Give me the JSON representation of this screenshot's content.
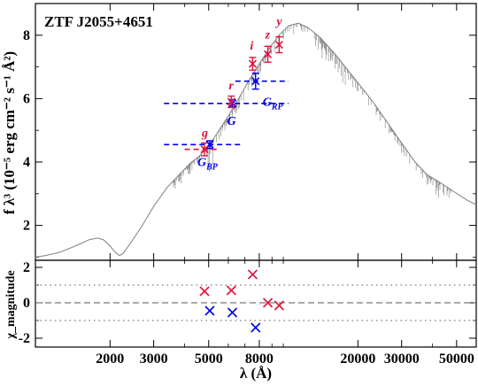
{
  "chart_data": {
    "type": "scatter",
    "title": "ZTF J2055+4651",
    "xlabel": "λ (Å)",
    "ylabel_top": "f λ³ (10⁻⁵ erg cm⁻² s⁻¹ Å²)",
    "ylabel_bottom": "χ_magnitude",
    "x_scale": "log",
    "xlim": [
      1000,
      60000
    ],
    "ylim_top": [
      0.9,
      9.0
    ],
    "ylim_bottom": [
      -2.5,
      2.4
    ],
    "x_ticks": [
      2000,
      3000,
      5000,
      8000,
      20000,
      30000,
      50000
    ],
    "x_tick_labels": [
      "2000",
      "3000",
      "5000",
      "8000",
      "20000",
      "30000",
      "50000"
    ],
    "y_ticks_top": [
      2,
      4,
      6,
      8
    ],
    "y_ticks_bottom": [
      -2,
      0,
      2
    ],
    "colors": {
      "ztf_ps1": "#dc143c",
      "gaia": "#0000ee",
      "model": "#808080"
    },
    "model_sed": [
      [
        1000,
        1.0
      ],
      [
        1100,
        1.05
      ],
      [
        1250,
        1.15
      ],
      [
        1450,
        1.35
      ],
      [
        1650,
        1.55
      ],
      [
        1780,
        1.6
      ],
      [
        1880,
        1.55
      ],
      [
        2000,
        1.35
      ],
      [
        2100,
        1.15
      ],
      [
        2180,
        1.05
      ],
      [
        2250,
        1.1
      ],
      [
        2400,
        1.4
      ],
      [
        2700,
        2.0
      ],
      [
        3000,
        2.6
      ],
      [
        3400,
        3.2
      ],
      [
        3800,
        3.6
      ],
      [
        4200,
        3.95
      ],
      [
        4600,
        4.2
      ],
      [
        5000,
        4.5
      ],
      [
        5500,
        5.0
      ],
      [
        6000,
        5.45
      ],
      [
        6600,
        6.0
      ],
      [
        7300,
        6.6
      ],
      [
        8000,
        7.1
      ],
      [
        8800,
        7.6
      ],
      [
        9600,
        8.0
      ],
      [
        10500,
        8.3
      ],
      [
        11500,
        8.38
      ],
      [
        12500,
        8.25
      ],
      [
        14000,
        7.95
      ],
      [
        16000,
        7.45
      ],
      [
        18000,
        6.95
      ],
      [
        20000,
        6.5
      ],
      [
        23000,
        5.9
      ],
      [
        26000,
        5.3
      ],
      [
        30000,
        4.6
      ],
      [
        34000,
        4.0
      ],
      [
        38000,
        3.6
      ],
      [
        42000,
        3.4
      ],
      [
        48000,
        3.1
      ],
      [
        55000,
        2.8
      ],
      [
        60000,
        2.65
      ]
    ],
    "ztf_ps1_points": [
      {
        "band": "g",
        "x": 4810,
        "y": 4.4,
        "yerr": 0.2,
        "xerr": [
          4000,
          5500
        ]
      },
      {
        "band": "r",
        "x": 6170,
        "y": 5.9,
        "yerr": 0.18,
        "xerr": null
      },
      {
        "band": "i",
        "x": 7520,
        "y": 7.1,
        "yerr": 0.2,
        "xerr": null
      },
      {
        "band": "z",
        "x": 8660,
        "y": 7.4,
        "yerr": 0.25,
        "xerr": null
      },
      {
        "band": "y",
        "x": 9620,
        "y": 7.7,
        "yerr": 0.25,
        "xerr": null
      }
    ],
    "gaia_points": [
      {
        "band": "G_BP",
        "x": 5050,
        "y": 4.55,
        "yerr": 0.12,
        "xerr": [
          3300,
          6800
        ]
      },
      {
        "band": "G",
        "x": 6230,
        "y": 5.85,
        "yerr": 0.12,
        "xerr": [
          3300,
          10500
        ]
      },
      {
        "band": "G_RP",
        "x": 7730,
        "y": 6.55,
        "yerr": 0.25,
        "xerr": [
          6400,
          10500
        ]
      }
    ],
    "residuals_ztf_ps1": [
      {
        "x": 4810,
        "y": 0.65
      },
      {
        "x": 6170,
        "y": 0.7
      },
      {
        "x": 7520,
        "y": 1.6
      },
      {
        "x": 8660,
        "y": 0.0
      },
      {
        "x": 9620,
        "y": -0.15
      }
    ],
    "residuals_gaia": [
      {
        "x": 5050,
        "y": -0.45
      },
      {
        "x": 6230,
        "y": -0.55
      },
      {
        "x": 7730,
        "y": -1.4
      }
    ],
    "reference_lines_bottom": [
      {
        "y": 0,
        "style": "dashed"
      },
      {
        "y": 1,
        "style": "dotted"
      },
      {
        "y": -1,
        "style": "dotted"
      }
    ],
    "labels": {
      "g": "g",
      "r": "r",
      "i": "i",
      "z": "z",
      "y": "y",
      "G": "G",
      "G_BP_main": "G",
      "G_BP_sub": "BP",
      "G_RP_main": "G",
      "G_RP_sub": "RP"
    },
    "legend": "none",
    "grid": false
  }
}
